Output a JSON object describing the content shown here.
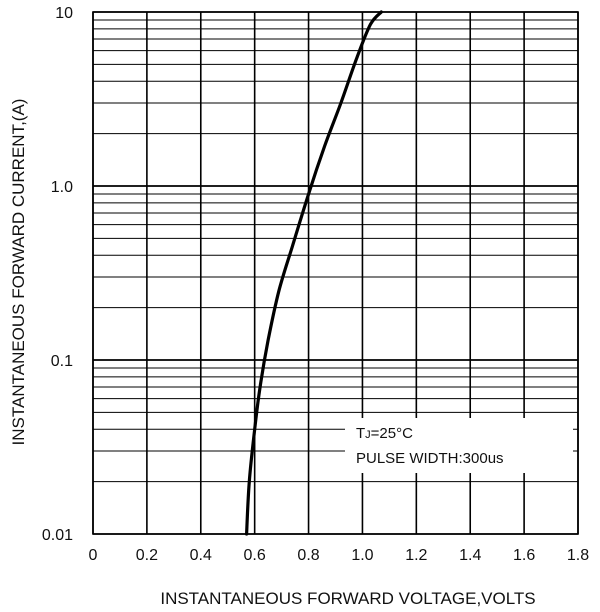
{
  "chart_data": {
    "type": "line",
    "title": "",
    "xlabel": "INSTANTANEOUS FORWARD VOLTAGE,VOLTS",
    "ylabel": "INSTANTANEOUS FORWARD CURRENT,(A)",
    "xlim": [
      0,
      1.8
    ],
    "ylim": [
      0.01,
      10
    ],
    "yscale": "log",
    "grid": true,
    "x_tick_labels": [
      "0",
      "0.2",
      "0.4",
      "0.6",
      "0.8",
      "1.0",
      "1.2",
      "1.4",
      "1.6",
      "1.8"
    ],
    "x_tick_values": [
      0,
      0.2,
      0.4,
      0.6,
      0.8,
      1.0,
      1.2,
      1.4,
      1.6,
      1.8
    ],
    "y_tick_labels": [
      "0.01",
      "0.1",
      "1.0",
      "10"
    ],
    "y_tick_values": [
      0.01,
      0.1,
      1.0,
      10
    ],
    "annotations": {
      "line1_main": "T",
      "line1_sub": "J",
      "line1_rest": "=25°C",
      "line2": "PULSE WIDTH:300us"
    },
    "series": [
      {
        "points": [
          [
            0.57,
            0.01
          ],
          [
            0.58,
            0.02
          ],
          [
            0.6,
            0.04
          ],
          [
            0.62,
            0.07
          ],
          [
            0.65,
            0.13
          ],
          [
            0.69,
            0.25
          ],
          [
            0.74,
            0.45
          ],
          [
            0.8,
            0.9
          ],
          [
            0.86,
            1.7
          ],
          [
            0.92,
            3.0
          ],
          [
            0.98,
            5.5
          ],
          [
            1.03,
            8.5
          ],
          [
            1.07,
            10
          ]
        ]
      }
    ]
  }
}
